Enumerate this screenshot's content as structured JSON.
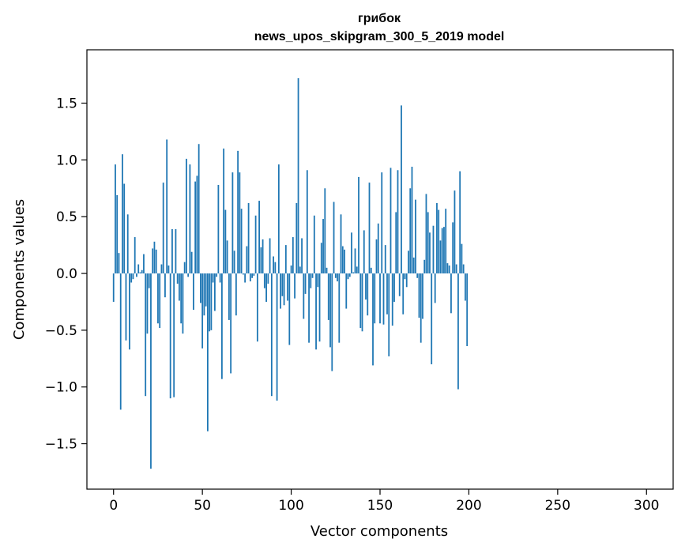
{
  "chart_data": {
    "type": "bar",
    "title": "грибок",
    "subtitle": "news_upos_skipgram_300_5_2019 model",
    "xlabel": "Vector components",
    "ylabel": "Components values",
    "xlim": [
      -15,
      315
    ],
    "ylim": [
      -1.9,
      1.97
    ],
    "xticks": [
      0,
      50,
      100,
      150,
      200,
      250,
      300
    ],
    "xtick_labels": [
      "0",
      "50",
      "100",
      "150",
      "200",
      "250",
      "300"
    ],
    "yticks": [
      1.5,
      1.0,
      0.5,
      0.0,
      -0.5,
      -1.0,
      -1.5
    ],
    "ytick_labels": [
      "1.5",
      "1.0",
      "0.5",
      "0.0",
      "−0.5",
      "−1.0",
      "−1.5"
    ],
    "bar_color": "#1f77b4",
    "grid": false,
    "values": [
      -0.25,
      0.96,
      0.69,
      0.18,
      -1.2,
      1.05,
      0.79,
      -0.59,
      0.52,
      -0.67,
      -0.08,
      -0.05,
      0.32,
      -0.03,
      0.08,
      0.01,
      0.03,
      0.17,
      -1.08,
      -0.53,
      -0.13,
      -1.72,
      0.22,
      0.28,
      0.21,
      -0.44,
      -0.48,
      0.08,
      0.8,
      -0.21,
      1.18,
      0.07,
      -1.1,
      0.39,
      -1.09,
      0.39,
      -0.09,
      -0.24,
      -0.44,
      -0.53,
      0.1,
      1.01,
      -0.03,
      0.96,
      0.19,
      -0.32,
      0.81,
      0.86,
      1.14,
      -0.26,
      -0.66,
      -0.37,
      -0.29,
      -1.39,
      -0.51,
      -0.5,
      -0.08,
      -0.33,
      -0.03,
      0.78,
      -0.08,
      -0.93,
      1.1,
      0.56,
      0.29,
      -0.41,
      -0.88,
      0.89,
      0.2,
      -0.37,
      1.08,
      0.89,
      0.57,
      -0.01,
      -0.08,
      0.24,
      0.62,
      -0.07,
      -0.04,
      -0.02,
      0.51,
      -0.6,
      0.64,
      0.23,
      0.3,
      -0.13,
      -0.25,
      -0.09,
      0.31,
      -1.08,
      0.15,
      0.1,
      -1.12,
      0.96,
      -0.31,
      -0.2,
      -0.28,
      0.25,
      -0.24,
      -0.63,
      0.07,
      0.32,
      -0.22,
      0.62,
      1.72,
      0.06,
      0.31,
      -0.4,
      -0.18,
      0.91,
      -0.61,
      -0.13,
      -0.04,
      0.51,
      -0.67,
      -0.12,
      -0.6,
      0.27,
      0.48,
      0.75,
      0.05,
      -0.41,
      -0.65,
      -0.86,
      0.63,
      -0.04,
      -0.07,
      -0.61,
      0.52,
      0.24,
      0.21,
      -0.31,
      -0.05,
      -0.03,
      0.36,
      0.01,
      0.22,
      0.06,
      0.85,
      -0.48,
      -0.51,
      0.38,
      -0.23,
      -0.37,
      0.8,
      0.05,
      -0.81,
      -0.44,
      0.3,
      0.44,
      -0.44,
      0.89,
      -0.45,
      0.25,
      -0.36,
      -0.73,
      0.93,
      -0.46,
      -0.25,
      0.54,
      0.91,
      -0.2,
      1.48,
      -0.36,
      -0.05,
      -0.12,
      0.2,
      0.75,
      0.94,
      0.14,
      0.65,
      -0.04,
      -0.39,
      -0.61,
      -0.4,
      0.12,
      0.7,
      0.54,
      0.36,
      -0.8,
      0.42,
      -0.26,
      0.62,
      0.56,
      0.29,
      0.4,
      0.41,
      0.57,
      0.09,
      0.07,
      -0.35,
      0.45,
      0.73,
      0.08,
      -1.02,
      0.9,
      0.26,
      0.08,
      -0.24,
      -0.64
    ]
  }
}
